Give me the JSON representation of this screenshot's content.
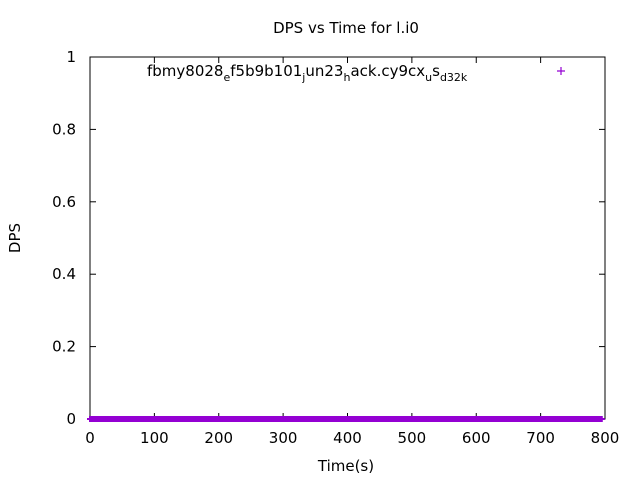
{
  "chart_data": {
    "type": "scatter",
    "title": "DPS vs Time for l.i0",
    "xlabel": "Time(s)",
    "ylabel": "DPS",
    "xlim": [
      0,
      800
    ],
    "ylim": [
      0,
      1
    ],
    "xticks": [
      0,
      100,
      200,
      300,
      400,
      500,
      600,
      700,
      800
    ],
    "yticks": [
      0,
      0.2,
      0.4,
      0.6,
      0.8,
      1
    ],
    "ytick_labels": [
      "0",
      "0.2",
      "0.4",
      "0.6",
      "0.8",
      "1"
    ],
    "grid": false,
    "legend_position": "top-right",
    "series": [
      {
        "name_parts": [
          "fbmy8028",
          "e",
          "f5b9b101",
          "j",
          "un23",
          "h",
          "ack.cy9cx",
          "u",
          "s",
          "d32k"
        ],
        "color": "#9400d3",
        "marker": "+",
        "x_range": [
          0,
          795
        ],
        "x_step": 1,
        "y_value": 0
      }
    ]
  }
}
